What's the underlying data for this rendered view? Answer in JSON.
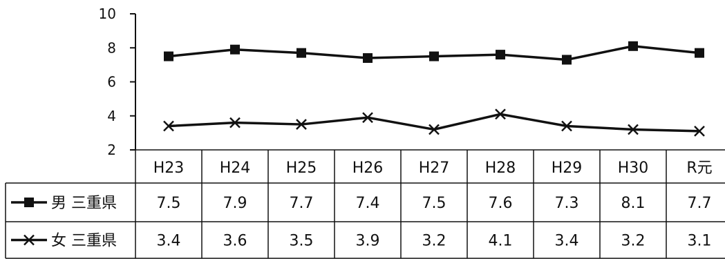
{
  "chart_data": {
    "type": "line",
    "ylim": [
      2,
      10
    ],
    "yticks": [
      2,
      4,
      6,
      8,
      10
    ],
    "categories": [
      "H23",
      "H24",
      "H25",
      "H26",
      "H27",
      "H28",
      "H29",
      "H30",
      "R元"
    ],
    "series": [
      {
        "name": "男 三重県",
        "values": [
          7.5,
          7.9,
          7.7,
          7.4,
          7.5,
          7.6,
          7.3,
          8.1,
          7.7
        ],
        "marker": "square",
        "color": "#111111"
      },
      {
        "name": "女 三重県",
        "values": [
          3.4,
          3.6,
          3.5,
          3.9,
          3.2,
          4.1,
          3.4,
          3.2,
          3.1
        ],
        "marker": "x",
        "color": "#111111"
      }
    ],
    "grid": false,
    "legend": "data-table"
  }
}
